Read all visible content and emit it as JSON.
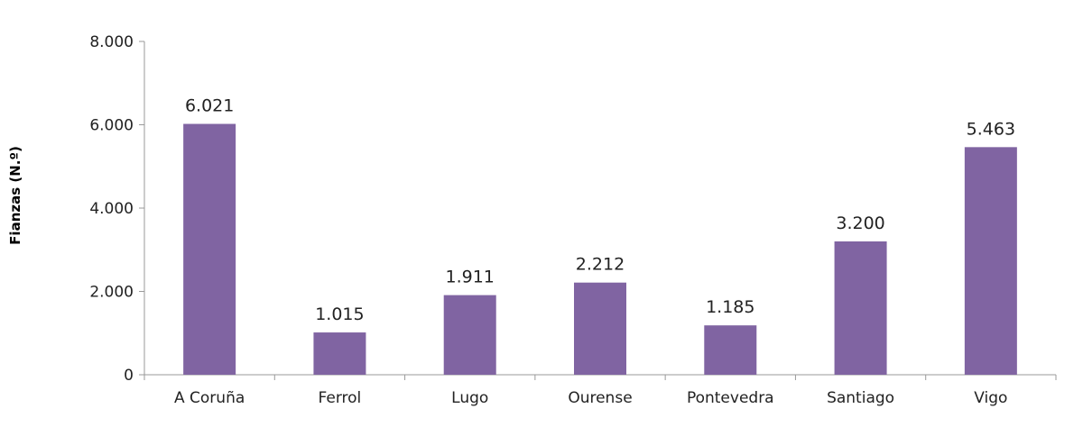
{
  "chart_data": {
    "type": "bar",
    "title": "",
    "xlabel": "",
    "ylabel": "Fianzas (N.º)",
    "ylim": [
      0,
      8000
    ],
    "yticks": [
      0,
      2000,
      4000,
      6000,
      8000
    ],
    "ytick_labels": [
      "0",
      "2.000",
      "4.000",
      "6.000",
      "8.000"
    ],
    "grid": false,
    "categories": [
      "A Coruña",
      "Ferrol",
      "Lugo",
      "Ourense",
      "Pontevedra",
      "Santiago",
      "Vigo"
    ],
    "values": [
      6021,
      1015,
      1911,
      2212,
      1185,
      3200,
      5463
    ],
    "data_labels": [
      "6.021",
      "1.015",
      "1.911",
      "2.212",
      "1.185",
      "3.200",
      "5.463"
    ],
    "colors": {
      "bar": "#8064a2",
      "axis": "#999999"
    }
  }
}
